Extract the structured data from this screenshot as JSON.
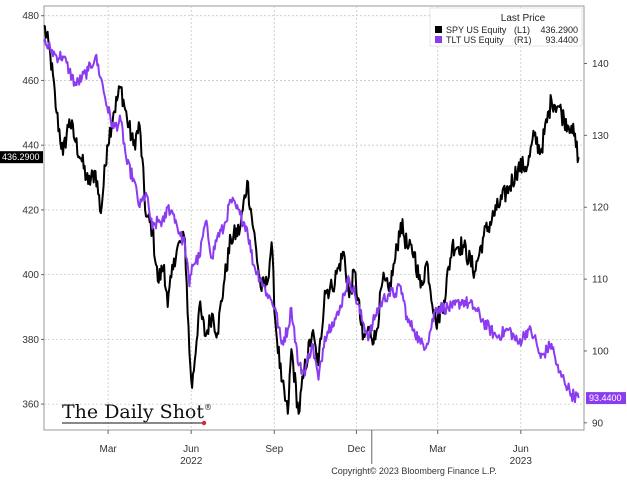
{
  "chart_data": {
    "type": "line",
    "legend": {
      "title": "Last Price",
      "placement": "top-right",
      "entries": [
        {
          "name": "SPY US Equity",
          "axis": "(L1)",
          "value": "436.2900"
        },
        {
          "name": "TLT US Equity",
          "axis": "(R1)",
          "value": "93.4400"
        }
      ]
    },
    "x_ticks": [
      "Mar",
      "Jun",
      "Sep",
      "Dec",
      "Mar",
      "Jun"
    ],
    "x_tick_dates": [
      "2022-03-15",
      "2022-06-15",
      "2022-09-15",
      "2022-12-15",
      "2023-03-15",
      "2023-06-15"
    ],
    "year_labels": [
      "2022",
      "2023"
    ],
    "year_label_dates": [
      "2022-06-15",
      "2023-06-15"
    ],
    "xlim": [
      "2022-01-03",
      "2023-08-24"
    ],
    "y_left": {
      "ticks": [
        360,
        380,
        400,
        420,
        440,
        460,
        480
      ],
      "ylim": [
        352,
        483
      ]
    },
    "y_right": {
      "ticks": [
        90,
        100,
        110,
        120,
        130,
        140
      ],
      "ylim": [
        89,
        148
      ]
    },
    "last_value_labels": {
      "left": "436.2900",
      "right": "93.4400"
    },
    "grid": true,
    "series": [
      {
        "name": "SPY US Equity",
        "axis": "left",
        "color": "#000000",
        "points": [
          [
            "2022-01-03",
            477
          ],
          [
            "2022-01-10",
            468
          ],
          [
            "2022-01-17",
            450
          ],
          [
            "2022-01-24",
            437
          ],
          [
            "2022-01-31",
            448
          ],
          [
            "2022-02-07",
            441
          ],
          [
            "2022-02-14",
            435
          ],
          [
            "2022-02-21",
            428
          ],
          [
            "2022-03-01",
            432
          ],
          [
            "2022-03-07",
            419
          ],
          [
            "2022-03-14",
            440
          ],
          [
            "2022-03-21",
            450
          ],
          [
            "2022-03-29",
            458
          ],
          [
            "2022-04-05",
            448
          ],
          [
            "2022-04-12",
            440
          ],
          [
            "2022-04-19",
            446
          ],
          [
            "2022-04-26",
            418
          ],
          [
            "2022-05-03",
            414
          ],
          [
            "2022-05-09",
            398
          ],
          [
            "2022-05-16",
            403
          ],
          [
            "2022-05-20",
            390
          ],
          [
            "2022-05-27",
            405
          ],
          [
            "2022-06-03",
            410
          ],
          [
            "2022-06-08",
            411
          ],
          [
            "2022-06-13",
            376
          ],
          [
            "2022-06-16",
            365
          ],
          [
            "2022-06-24",
            390
          ],
          [
            "2022-07-01",
            381
          ],
          [
            "2022-07-08",
            388
          ],
          [
            "2022-07-14",
            382
          ],
          [
            "2022-07-21",
            397
          ],
          [
            "2022-07-29",
            411
          ],
          [
            "2022-08-08",
            414
          ],
          [
            "2022-08-16",
            429
          ],
          [
            "2022-08-23",
            414
          ],
          [
            "2022-08-31",
            396
          ],
          [
            "2022-09-07",
            397
          ],
          [
            "2022-09-12",
            410
          ],
          [
            "2022-09-16",
            386
          ],
          [
            "2022-09-23",
            367
          ],
          [
            "2022-09-30",
            357
          ],
          [
            "2022-10-04",
            377
          ],
          [
            "2022-10-12",
            357
          ],
          [
            "2022-10-18",
            370
          ],
          [
            "2022-10-27",
            382
          ],
          [
            "2022-11-03",
            372
          ],
          [
            "2022-11-10",
            395
          ],
          [
            "2022-11-18",
            396
          ],
          [
            "2022-11-25",
            402
          ],
          [
            "2022-12-01",
            407
          ],
          [
            "2022-12-07",
            393
          ],
          [
            "2022-12-13",
            401
          ],
          [
            "2022-12-22",
            380
          ],
          [
            "2022-12-29",
            383
          ],
          [
            "2023-01-05",
            380
          ],
          [
            "2023-01-13",
            398
          ],
          [
            "2023-01-20",
            395
          ],
          [
            "2023-01-27",
            405
          ],
          [
            "2023-02-02",
            416
          ],
          [
            "2023-02-10",
            408
          ],
          [
            "2023-02-17",
            407
          ],
          [
            "2023-02-24",
            396
          ],
          [
            "2023-03-03",
            404
          ],
          [
            "2023-03-13",
            385
          ],
          [
            "2023-03-22",
            392
          ],
          [
            "2023-03-31",
            409
          ],
          [
            "2023-04-12",
            409
          ],
          [
            "2023-04-25",
            401
          ],
          [
            "2023-05-05",
            412
          ],
          [
            "2023-05-19",
            420
          ],
          [
            "2023-06-02",
            427
          ],
          [
            "2023-06-12",
            433
          ],
          [
            "2023-06-23",
            434
          ],
          [
            "2023-06-30",
            443
          ],
          [
            "2023-07-07",
            438
          ],
          [
            "2023-07-19",
            454
          ],
          [
            "2023-07-27",
            452
          ],
          [
            "2023-08-02",
            448
          ],
          [
            "2023-08-10",
            446
          ],
          [
            "2023-08-18",
            436.29
          ]
        ]
      },
      {
        "name": "TLT US Equity",
        "axis": "right",
        "color": "#8c3cf0",
        "points": [
          [
            "2022-01-03",
            143
          ],
          [
            "2022-01-10",
            142
          ],
          [
            "2022-01-17",
            141
          ],
          [
            "2022-01-24",
            141
          ],
          [
            "2022-01-31",
            139
          ],
          [
            "2022-02-07",
            137
          ],
          [
            "2022-02-14",
            138
          ],
          [
            "2022-02-21",
            139
          ],
          [
            "2022-03-01",
            141
          ],
          [
            "2022-03-07",
            138
          ],
          [
            "2022-03-14",
            134
          ],
          [
            "2022-03-21",
            131
          ],
          [
            "2022-03-29",
            132
          ],
          [
            "2022-04-05",
            126
          ],
          [
            "2022-04-12",
            124
          ],
          [
            "2022-04-19",
            120
          ],
          [
            "2022-04-26",
            122
          ],
          [
            "2022-05-03",
            117
          ],
          [
            "2022-05-09",
            118
          ],
          [
            "2022-05-16",
            118
          ],
          [
            "2022-05-20",
            120
          ],
          [
            "2022-05-27",
            119
          ],
          [
            "2022-06-03",
            116
          ],
          [
            "2022-06-08",
            115
          ],
          [
            "2022-06-13",
            109
          ],
          [
            "2022-06-16",
            112
          ],
          [
            "2022-06-24",
            113
          ],
          [
            "2022-07-01",
            118
          ],
          [
            "2022-07-08",
            113
          ],
          [
            "2022-07-14",
            116
          ],
          [
            "2022-07-21",
            117
          ],
          [
            "2022-07-29",
            121
          ],
          [
            "2022-08-08",
            119
          ],
          [
            "2022-08-16",
            117
          ],
          [
            "2022-08-23",
            112
          ],
          [
            "2022-08-31",
            110
          ],
          [
            "2022-09-07",
            108
          ],
          [
            "2022-09-12",
            107
          ],
          [
            "2022-09-16",
            106
          ],
          [
            "2022-09-23",
            101
          ],
          [
            "2022-09-30",
            103
          ],
          [
            "2022-10-04",
            106
          ],
          [
            "2022-10-12",
            98
          ],
          [
            "2022-10-18",
            97
          ],
          [
            "2022-10-27",
            101
          ],
          [
            "2022-11-03",
            96
          ],
          [
            "2022-11-10",
            102
          ],
          [
            "2022-11-18",
            104
          ],
          [
            "2022-11-25",
            105
          ],
          [
            "2022-12-01",
            108
          ],
          [
            "2022-12-07",
            110
          ],
          [
            "2022-12-13",
            108
          ],
          [
            "2022-12-22",
            104
          ],
          [
            "2022-12-29",
            102
          ],
          [
            "2023-01-05",
            105
          ],
          [
            "2023-01-13",
            107
          ],
          [
            "2023-01-20",
            108
          ],
          [
            "2023-01-27",
            108
          ],
          [
            "2023-02-02",
            109
          ],
          [
            "2023-02-10",
            104
          ],
          [
            "2023-02-17",
            103
          ],
          [
            "2023-02-24",
            101
          ],
          [
            "2023-03-03",
            101
          ],
          [
            "2023-03-13",
            106
          ],
          [
            "2023-03-22",
            106
          ],
          [
            "2023-03-31",
            106
          ],
          [
            "2023-04-12",
            107
          ],
          [
            "2023-04-25",
            106
          ],
          [
            "2023-05-05",
            104
          ],
          [
            "2023-05-19",
            102
          ],
          [
            "2023-06-02",
            103
          ],
          [
            "2023-06-12",
            101
          ],
          [
            "2023-06-23",
            103
          ],
          [
            "2023-06-30",
            102
          ],
          [
            "2023-07-07",
            99
          ],
          [
            "2023-07-19",
            101
          ],
          [
            "2023-07-27",
            97
          ],
          [
            "2023-08-02",
            96
          ],
          [
            "2023-08-10",
            94
          ],
          [
            "2023-08-18",
            93.44
          ]
        ]
      }
    ]
  },
  "branding": {
    "logo_text": "The Daily Shot",
    "logo_mark": "®"
  },
  "footer": {
    "copyright": "Copyright© 2023 Bloomberg Finance L.P."
  }
}
